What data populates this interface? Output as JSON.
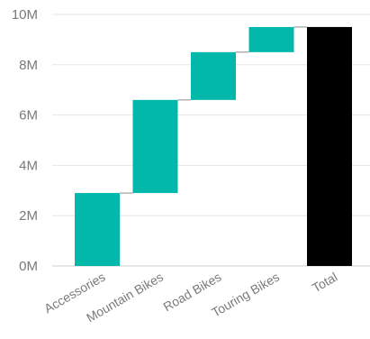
{
  "chart_data": {
    "type": "bar",
    "subtype": "waterfall",
    "title": "",
    "xlabel": "",
    "ylabel": "",
    "categories": [
      "Accessories",
      "Mountain Bikes",
      "Road Bikes",
      "Touring Bikes",
      "Total"
    ],
    "series": [
      {
        "values": [
          2.9,
          3.7,
          1.9,
          1.0,
          9.5
        ],
        "start": [
          0,
          2.9,
          6.6,
          8.5,
          0
        ],
        "end": [
          2.9,
          6.6,
          8.5,
          9.5,
          9.5
        ],
        "is_total": [
          false,
          false,
          false,
          false,
          true
        ]
      }
    ],
    "y_ticks": [
      0,
      2,
      4,
      6,
      8,
      10
    ],
    "y_tick_labels": [
      "0M",
      "2M",
      "4M",
      "6M",
      "8M",
      "10M"
    ],
    "ylim": [
      0,
      10
    ],
    "grid": true,
    "legend": "none",
    "colors": {
      "increase": "#01B8AA",
      "total": "#000000"
    }
  }
}
